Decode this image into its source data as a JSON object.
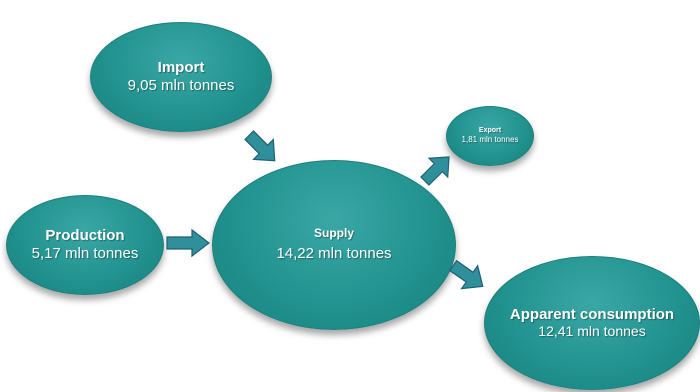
{
  "nodes": {
    "import": {
      "title": "Import",
      "value": "9,05 mln tonnes"
    },
    "production": {
      "title": "Production",
      "value": "5,17 mln tonnes"
    },
    "supply": {
      "title": "Supply",
      "value": "14,22 mln tonnes"
    },
    "export": {
      "title": "Export",
      "value": "1,81 mln tonnes"
    },
    "consumption": {
      "title": "Apparent consumption",
      "value": "12,41 mln tonnes"
    }
  },
  "colors": {
    "node_fill": "#229390",
    "arrow_fill": "#2f8f9b",
    "arrow_edge": "#1f5f73"
  }
}
